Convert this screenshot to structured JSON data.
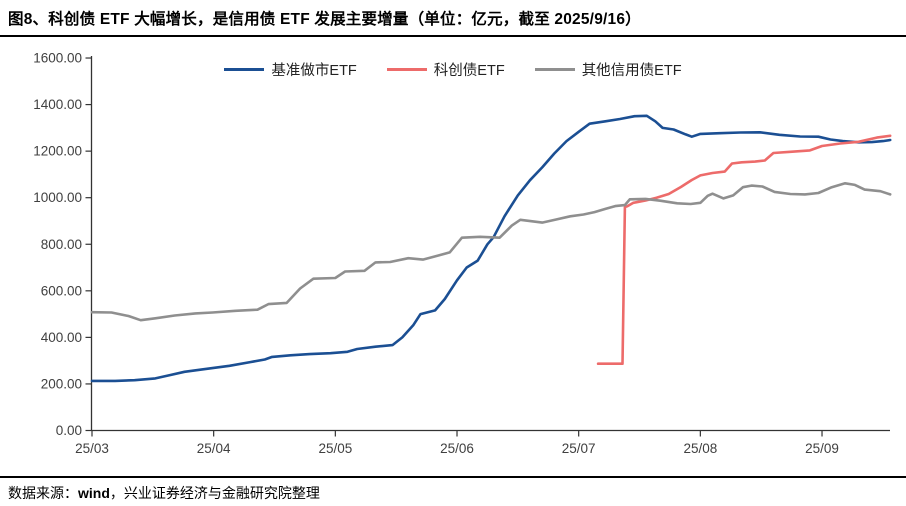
{
  "header": {
    "title": "图8、科创债 ETF 大幅增长，是信用债 ETF 发展主要增量（单位：亿元，截至 2025/9/16）"
  },
  "footer": {
    "source_prefix": "数据来源：",
    "source_name": "wind",
    "source_suffix": "，兴业证券经济与金融研究院整理"
  },
  "chart_data": {
    "type": "line",
    "title": "图8、科创债 ETF 大幅增长，是信用债 ETF 发展主要增量（单位：亿元，截至 2025/9/16）",
    "unit": "亿元",
    "as_of": "2025/9/16",
    "legend_position": "top",
    "grid": false,
    "x_axis": {
      "note": "x in months since 25/03 tick (0 = 25/03, 6 = 25/09)",
      "tick_positions": [
        0,
        1,
        2,
        3,
        4,
        5,
        6
      ],
      "tick_labels": [
        "25/03",
        "25/04",
        "25/05",
        "25/06",
        "25/07",
        "25/08",
        "25/09"
      ],
      "range": [
        0,
        6.56
      ]
    },
    "y_axis": {
      "range": [
        0,
        1600
      ],
      "tick_step": 200,
      "tick_labels": [
        "0.00",
        "200.00",
        "400.00",
        "600.00",
        "800.00",
        "1000.00",
        "1200.00",
        "1400.00",
        "1600.00"
      ]
    },
    "series": [
      {
        "name": "基准做市ETF",
        "color": "#1B4F93",
        "points": [
          [
            0.0,
            213
          ],
          [
            0.19,
            213
          ],
          [
            0.35,
            216
          ],
          [
            0.52,
            224
          ],
          [
            0.64,
            238
          ],
          [
            0.76,
            252
          ],
          [
            0.89,
            261
          ],
          [
            0.99,
            268
          ],
          [
            1.13,
            278
          ],
          [
            1.3,
            294
          ],
          [
            1.42,
            305
          ],
          [
            1.48,
            316
          ],
          [
            1.63,
            323
          ],
          [
            1.79,
            328
          ],
          [
            1.96,
            332
          ],
          [
            2.1,
            338
          ],
          [
            2.18,
            350
          ],
          [
            2.33,
            360
          ],
          [
            2.47,
            367
          ],
          [
            2.55,
            400
          ],
          [
            2.64,
            452
          ],
          [
            2.7,
            500
          ],
          [
            2.82,
            516
          ],
          [
            2.9,
            565
          ],
          [
            3.0,
            645
          ],
          [
            3.08,
            700
          ],
          [
            3.17,
            730
          ],
          [
            3.25,
            800
          ],
          [
            3.3,
            830
          ],
          [
            3.39,
            920
          ],
          [
            3.5,
            1010
          ],
          [
            3.6,
            1075
          ],
          [
            3.7,
            1130
          ],
          [
            3.8,
            1190
          ],
          [
            3.9,
            1243
          ],
          [
            4.0,
            1283
          ],
          [
            4.09,
            1318
          ],
          [
            4.22,
            1328
          ],
          [
            4.34,
            1338
          ],
          [
            4.46,
            1350
          ],
          [
            4.56,
            1352
          ],
          [
            4.63,
            1328
          ],
          [
            4.69,
            1300
          ],
          [
            4.78,
            1293
          ],
          [
            4.88,
            1272
          ],
          [
            4.93,
            1262
          ],
          [
            5.0,
            1274
          ],
          [
            5.16,
            1277
          ],
          [
            5.33,
            1280
          ],
          [
            5.49,
            1281
          ],
          [
            5.65,
            1270
          ],
          [
            5.82,
            1263
          ],
          [
            5.97,
            1262
          ],
          [
            6.07,
            1250
          ],
          [
            6.17,
            1243
          ],
          [
            6.3,
            1238
          ],
          [
            6.41,
            1239
          ],
          [
            6.5,
            1243
          ],
          [
            6.56,
            1248
          ]
        ]
      },
      {
        "name": "科创债ETF",
        "color": "#ED6B6A",
        "points": [
          [
            4.16,
            287
          ],
          [
            4.36,
            287
          ],
          [
            4.38,
            960
          ],
          [
            4.4,
            963
          ],
          [
            4.45,
            978
          ],
          [
            4.55,
            988
          ],
          [
            4.64,
            1000
          ],
          [
            4.74,
            1016
          ],
          [
            4.84,
            1046
          ],
          [
            4.93,
            1076
          ],
          [
            5.0,
            1096
          ],
          [
            5.1,
            1106
          ],
          [
            5.2,
            1112
          ],
          [
            5.26,
            1147
          ],
          [
            5.34,
            1152
          ],
          [
            5.45,
            1155
          ],
          [
            5.53,
            1160
          ],
          [
            5.6,
            1192
          ],
          [
            5.74,
            1197
          ],
          [
            5.9,
            1203
          ],
          [
            6.0,
            1222
          ],
          [
            6.15,
            1233
          ],
          [
            6.3,
            1240
          ],
          [
            6.45,
            1258
          ],
          [
            6.56,
            1266
          ]
        ]
      },
      {
        "name": "其他信用债ETF",
        "color": "#8F8F8F",
        "points": [
          [
            0.0,
            508
          ],
          [
            0.16,
            507
          ],
          [
            0.3,
            492
          ],
          [
            0.4,
            474
          ],
          [
            0.52,
            482
          ],
          [
            0.68,
            494
          ],
          [
            0.85,
            503
          ],
          [
            0.99,
            507
          ],
          [
            1.18,
            514
          ],
          [
            1.36,
            519
          ],
          [
            1.45,
            543
          ],
          [
            1.6,
            548
          ],
          [
            1.71,
            610
          ],
          [
            1.82,
            652
          ],
          [
            2.0,
            655
          ],
          [
            2.08,
            683
          ],
          [
            2.24,
            686
          ],
          [
            2.33,
            722
          ],
          [
            2.45,
            724
          ],
          [
            2.6,
            740
          ],
          [
            2.72,
            734
          ],
          [
            2.82,
            748
          ],
          [
            2.94,
            765
          ],
          [
            3.04,
            828
          ],
          [
            3.19,
            832
          ],
          [
            3.35,
            828
          ],
          [
            3.45,
            880
          ],
          [
            3.52,
            905
          ],
          [
            3.7,
            893
          ],
          [
            3.81,
            906
          ],
          [
            3.93,
            920
          ],
          [
            4.04,
            928
          ],
          [
            4.13,
            938
          ],
          [
            4.22,
            952
          ],
          [
            4.3,
            964
          ],
          [
            4.38,
            968
          ],
          [
            4.42,
            993
          ],
          [
            4.55,
            995
          ],
          [
            4.67,
            987
          ],
          [
            4.81,
            976
          ],
          [
            4.92,
            973
          ],
          [
            5.0,
            978
          ],
          [
            5.06,
            1008
          ],
          [
            5.1,
            1017
          ],
          [
            5.19,
            997
          ],
          [
            5.27,
            1010
          ],
          [
            5.35,
            1045
          ],
          [
            5.42,
            1052
          ],
          [
            5.51,
            1048
          ],
          [
            5.61,
            1025
          ],
          [
            5.74,
            1016
          ],
          [
            5.86,
            1014
          ],
          [
            5.97,
            1020
          ],
          [
            6.08,
            1045
          ],
          [
            6.19,
            1062
          ],
          [
            6.27,
            1055
          ],
          [
            6.35,
            1035
          ],
          [
            6.48,
            1028
          ],
          [
            6.56,
            1014
          ]
        ]
      }
    ]
  }
}
